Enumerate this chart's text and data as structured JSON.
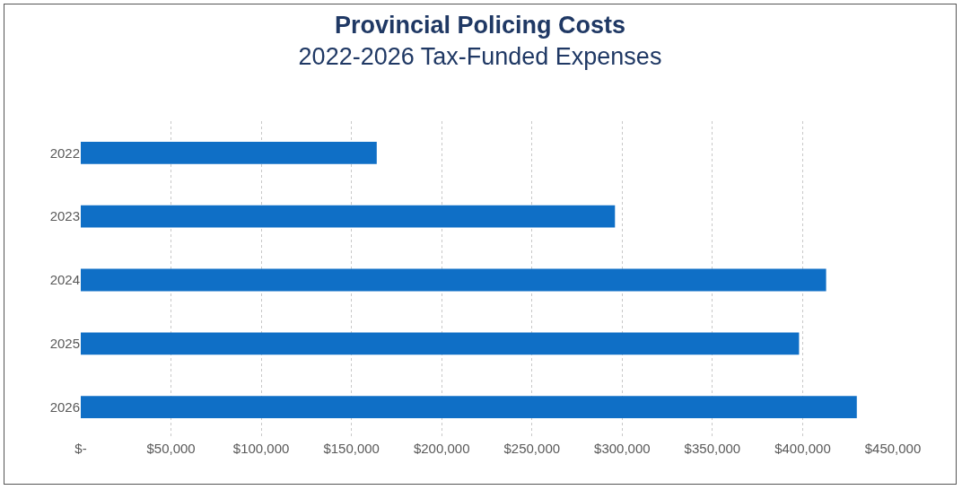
{
  "chart_data": {
    "type": "bar",
    "orientation": "horizontal",
    "title": "Provincial Policing Costs",
    "subtitle": "2022-2026 Tax-Funded Expenses",
    "categories": [
      "2022",
      "2023",
      "2024",
      "2025",
      "2026"
    ],
    "values": [
      164000,
      296000,
      413000,
      398000,
      430000
    ],
    "color": "#0f6fc6",
    "xlim": [
      0,
      450000
    ],
    "xticks": [
      {
        "value": 0,
        "label": "$-"
      },
      {
        "value": 50000,
        "label": "$50,000"
      },
      {
        "value": 100000,
        "label": "$100,000"
      },
      {
        "value": 150000,
        "label": "$150,000"
      },
      {
        "value": 200000,
        "label": "$200,000"
      },
      {
        "value": 250000,
        "label": "$250,000"
      },
      {
        "value": 300000,
        "label": "$300,000"
      },
      {
        "value": 350000,
        "label": "$350,000"
      },
      {
        "value": 400000,
        "label": "$400,000"
      },
      {
        "value": 450000,
        "label": "$450,000"
      }
    ],
    "grid": "x"
  }
}
